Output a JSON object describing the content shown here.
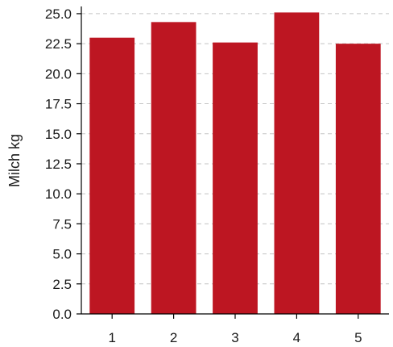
{
  "chart_data": {
    "type": "bar",
    "categories": [
      "1",
      "2",
      "3",
      "4",
      "5"
    ],
    "values": [
      23.0,
      24.3,
      22.6,
      25.1,
      22.5
    ],
    "ylabel": "Milch kg",
    "xlabel": "",
    "ylim": [
      0,
      25.6
    ],
    "yticks": [
      "0.0",
      "2.5",
      "5.0",
      "7.5",
      "10.0",
      "12.5",
      "15.0",
      "17.5",
      "20.0",
      "22.5",
      "25.0"
    ],
    "grid": true,
    "bar_color": "#bd1622"
  }
}
